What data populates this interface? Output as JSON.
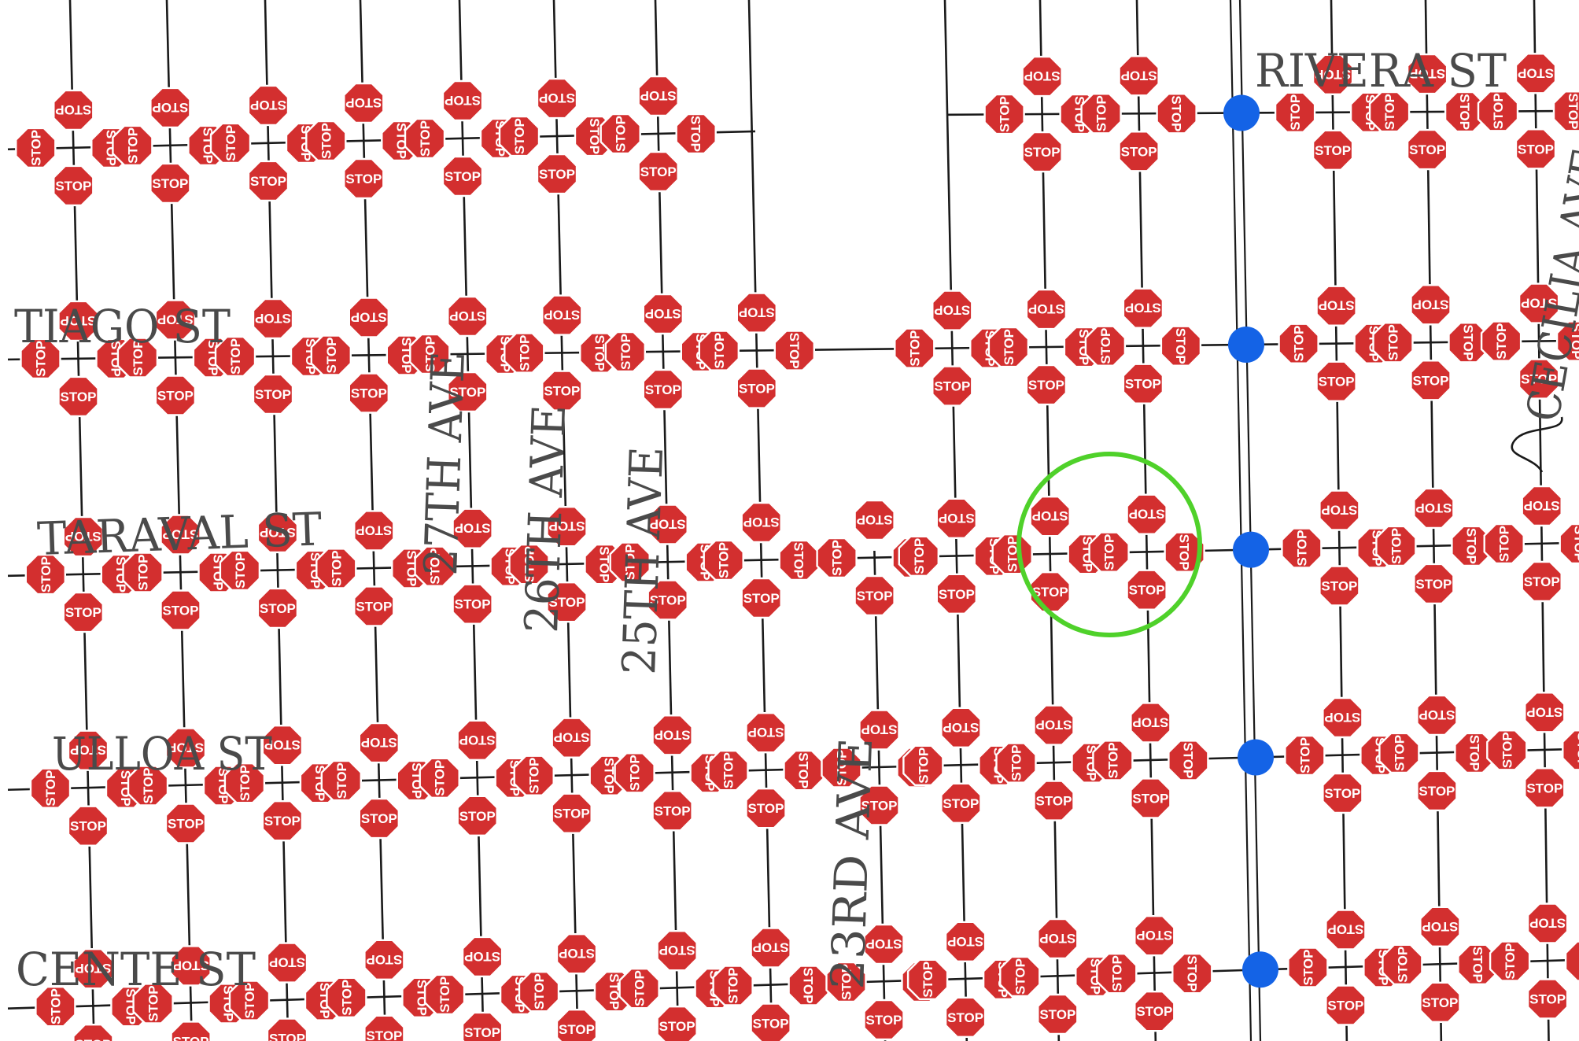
{
  "map": {
    "streets": {
      "rivera": "RIVERA ST",
      "santiago": "TIAGO ST",
      "taraval": "TARAVAL ST",
      "ulloa": "ULLOA ST",
      "vicente": "CENTE ST",
      "ave27": "27TH AVE",
      "ave26": "26TH AVE",
      "ave25": "25TH AVE",
      "ave23": "23RD AVE",
      "cecilia": "CECILIA AVE"
    },
    "stop_sign_text": "STOP",
    "colors": {
      "stop_sign": "#d32f2f",
      "traffic_signal": "#1463e6",
      "highlight_circle": "#4fd12a",
      "road": "#1a1a1a"
    },
    "highlight": {
      "label": "highlighted intersection",
      "stops_inside": 4
    },
    "traffic_signals": 5
  }
}
